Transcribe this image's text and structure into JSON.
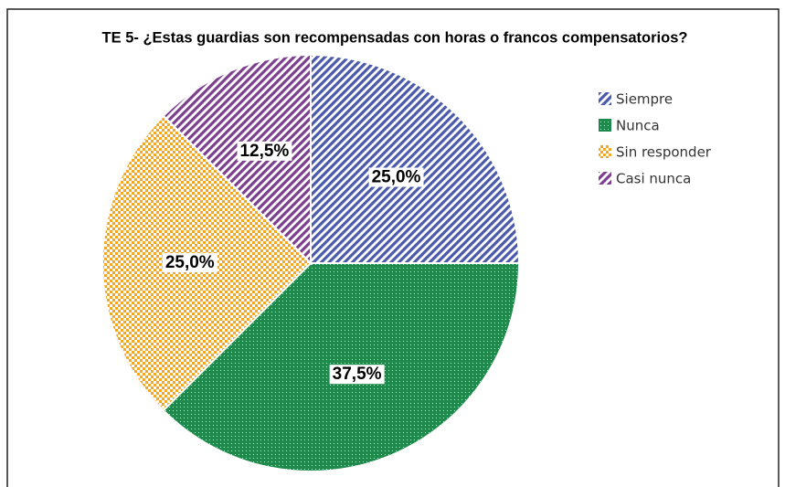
{
  "chart_data": {
    "type": "pie",
    "title": "TE 5- ¿Estas guardias son recompensadas con horas o francos compensatorios?",
    "categories": [
      "Siempre",
      "Nunca",
      "Sin responder",
      "Casi nunca"
    ],
    "values": [
      25.0,
      37.5,
      25.0,
      12.5
    ],
    "value_labels": [
      "25,0%",
      "37,5%",
      "25,0%",
      "12,5%"
    ],
    "colors": [
      "#4a5aa8",
      "#1f8a4c",
      "#f5a623",
      "#7b3f8c"
    ],
    "legend": "right"
  }
}
